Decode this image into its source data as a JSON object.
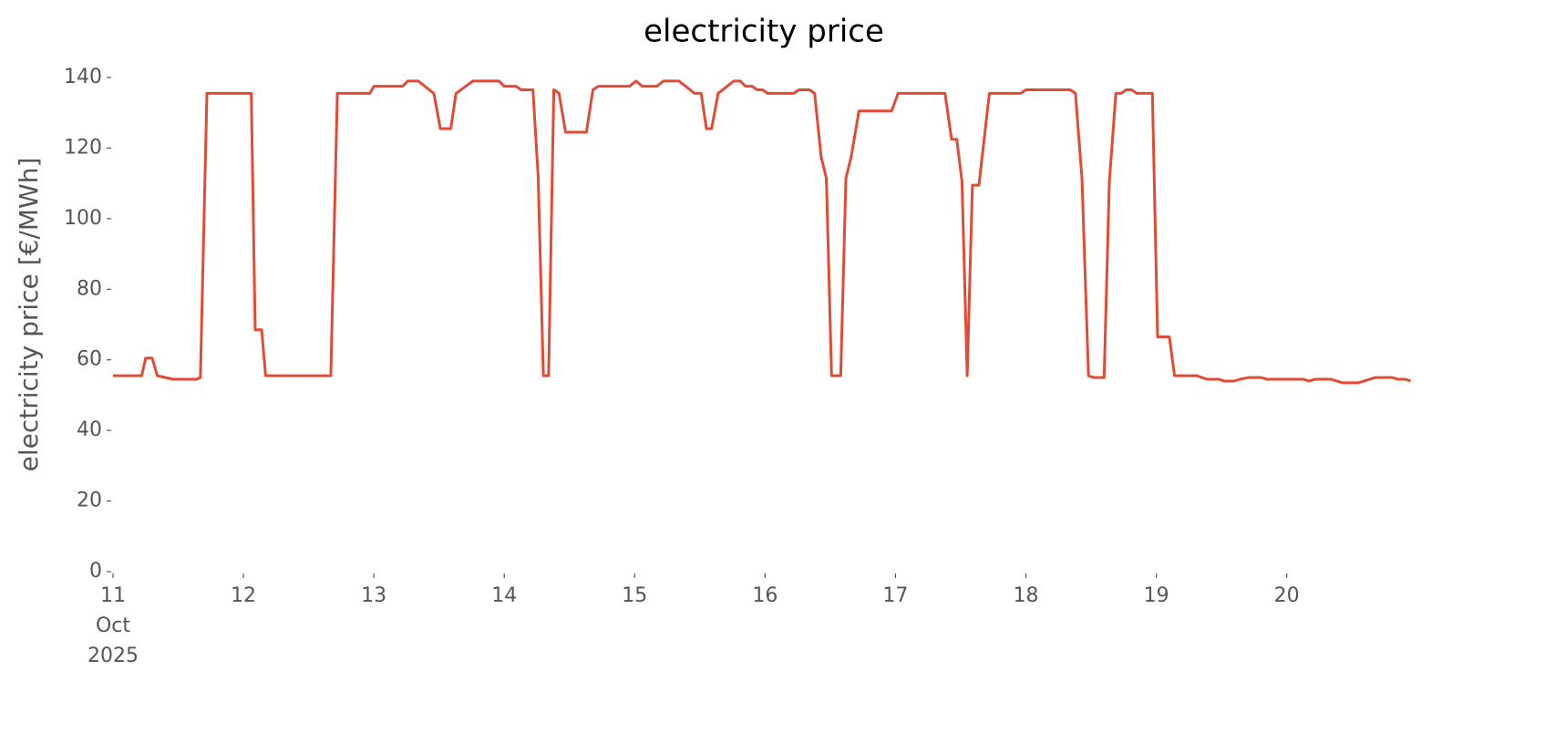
{
  "chart_data": {
    "type": "line",
    "title": "electricity price",
    "y_label": "electricity price [€/MWh]",
    "color": "#e24a33",
    "grid": false,
    "xlim": [
      11,
      20.96
    ],
    "ylim": [
      0,
      140
    ],
    "yticks": [
      0,
      20,
      40,
      60,
      80,
      100,
      120,
      140
    ],
    "xticks": [
      {
        "value": 11,
        "label": "11 Oct 2025"
      },
      12,
      13,
      14,
      15,
      16,
      17,
      18,
      19,
      20
    ],
    "x": [
      11.0,
      11.22,
      11.25,
      11.3,
      11.34,
      11.46,
      11.64,
      11.67,
      11.72,
      12.06,
      12.09,
      12.14,
      12.17,
      12.67,
      12.72,
      12.97,
      13.0,
      13.22,
      13.26,
      13.34,
      13.46,
      13.51,
      13.59,
      13.63,
      13.76,
      13.96,
      14.0,
      14.09,
      14.13,
      14.22,
      14.26,
      14.3,
      14.34,
      14.38,
      14.42,
      14.47,
      14.63,
      14.68,
      14.72,
      14.96,
      15.01,
      15.06,
      15.17,
      15.22,
      15.34,
      15.46,
      15.51,
      15.55,
      15.59,
      15.64,
      15.76,
      15.81,
      15.85,
      15.9,
      15.94,
      15.98,
      16.02,
      16.22,
      16.26,
      16.34,
      16.38,
      16.43,
      16.47,
      16.51,
      16.58,
      16.62,
      16.66,
      16.72,
      16.97,
      17.02,
      17.38,
      17.43,
      17.47,
      17.51,
      17.55,
      17.59,
      17.64,
      17.72,
      17.96,
      18.0,
      18.34,
      18.38,
      18.43,
      18.48,
      18.52,
      18.6,
      18.64,
      18.69,
      18.73,
      18.77,
      18.81,
      18.85,
      18.97,
      19.01,
      19.1,
      19.14,
      19.31,
      19.39,
      19.48,
      19.52,
      19.6,
      19.64,
      19.71,
      19.8,
      19.85,
      20.13,
      20.17,
      20.22,
      20.34,
      20.43,
      20.55,
      20.68,
      20.81,
      20.85,
      20.91,
      20.95
    ],
    "values": [
      55.5,
      55.5,
      60.5,
      60.5,
      55.5,
      54.5,
      54.5,
      55,
      135.5,
      135.5,
      68.5,
      68.5,
      55.5,
      55.5,
      135.5,
      135.5,
      137.5,
      137.5,
      139,
      139,
      135.5,
      125.5,
      125.5,
      135.5,
      139,
      139,
      137.5,
      137.5,
      136.5,
      136.5,
      112,
      55.5,
      55.5,
      136.5,
      135.5,
      124.5,
      124.5,
      136.5,
      137.5,
      137.5,
      139,
      137.5,
      137.5,
      139,
      139,
      135.5,
      135.5,
      125.5,
      125.5,
      135.5,
      139,
      139,
      137.5,
      137.5,
      136.5,
      136.5,
      135.5,
      135.5,
      136.5,
      136.5,
      135.5,
      117.5,
      111.5,
      55.5,
      55.5,
      111.5,
      117.5,
      130.5,
      130.5,
      135.5,
      135.5,
      122.5,
      122.5,
      110.5,
      55.5,
      109.5,
      109.5,
      135.5,
      135.5,
      136.5,
      136.5,
      135.5,
      111.5,
      55.5,
      55,
      55,
      110.5,
      135.5,
      135.5,
      136.5,
      136.5,
      135.5,
      135.5,
      66.5,
      66.5,
      55.5,
      55.5,
      54.5,
      54.5,
      54,
      54,
      54.5,
      55,
      55,
      54.5,
      54.5,
      54,
      54.5,
      54.5,
      53.5,
      53.5,
      55,
      55,
      54.5,
      54.5,
      54
    ]
  }
}
